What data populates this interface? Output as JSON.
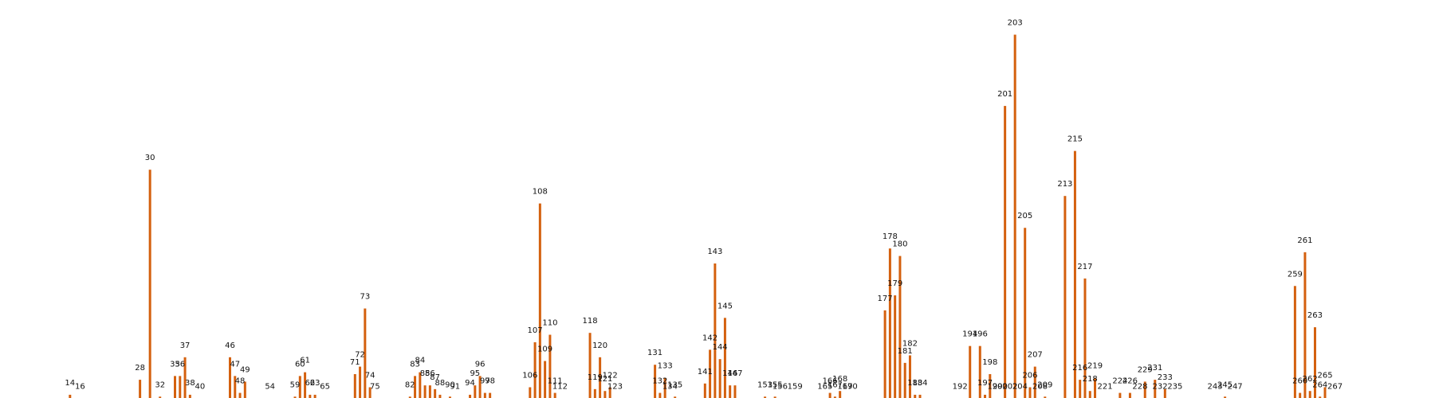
{
  "chart_data": {
    "type": "bar",
    "bar_color": "#d4600e",
    "background": "#ffffff",
    "grid": false,
    "axes_visible": false,
    "xlim": [
      0,
      287
    ],
    "ylim": [
      0,
      205
    ],
    "categories": [
      14,
      16,
      28,
      30,
      32,
      35,
      36,
      37,
      38,
      40,
      46,
      47,
      48,
      49,
      54,
      59,
      60,
      61,
      62,
      63,
      65,
      71,
      72,
      73,
      74,
      75,
      82,
      83,
      84,
      85,
      86,
      87,
      88,
      90,
      91,
      94,
      95,
      96,
      97,
      98,
      106,
      107,
      108,
      109,
      110,
      111,
      112,
      118,
      119,
      120,
      121,
      122,
      123,
      131,
      132,
      133,
      134,
      135,
      141,
      142,
      143,
      144,
      145,
      146,
      147,
      153,
      155,
      156,
      159,
      165,
      166,
      167,
      168,
      169,
      170,
      177,
      178,
      179,
      180,
      181,
      182,
      183,
      184,
      192,
      194,
      196,
      197,
      198,
      199,
      200,
      201,
      202,
      203,
      204,
      205,
      206,
      207,
      208,
      209,
      213,
      215,
      216,
      217,
      218,
      219,
      221,
      224,
      226,
      228,
      229,
      231,
      232,
      233,
      235,
      243,
      245,
      247,
      259,
      260,
      261,
      262,
      263,
      264,
      265,
      267
    ],
    "values": [
      3,
      1,
      11,
      123,
      2,
      13,
      13,
      23,
      3,
      1,
      23,
      13,
      4,
      10,
      1,
      2,
      13,
      15,
      3,
      3,
      1,
      14,
      18,
      49,
      7,
      1,
      2,
      13,
      15,
      8,
      8,
      6,
      3,
      2,
      1,
      3,
      8,
      13,
      4,
      4,
      7,
      31,
      105,
      21,
      35,
      4,
      1,
      36,
      6,
      23,
      5,
      7,
      1,
      19,
      4,
      12,
      1,
      2,
      9,
      27,
      73,
      22,
      44,
      8,
      8,
      2,
      2,
      1,
      1,
      1,
      4,
      2,
      5,
      1,
      1,
      48,
      81,
      56,
      77,
      20,
      24,
      3,
      3,
      1,
      29,
      29,
      3,
      14,
      1,
      1,
      157,
      1,
      195,
      1,
      92,
      7,
      18,
      1,
      2,
      109,
      133,
      11,
      65,
      5,
      12,
      1,
      4,
      4,
      1,
      10,
      11,
      1,
      6,
      1,
      1,
      2,
      1,
      61,
      4,
      79,
      5,
      39,
      2,
      7,
      1
    ]
  }
}
